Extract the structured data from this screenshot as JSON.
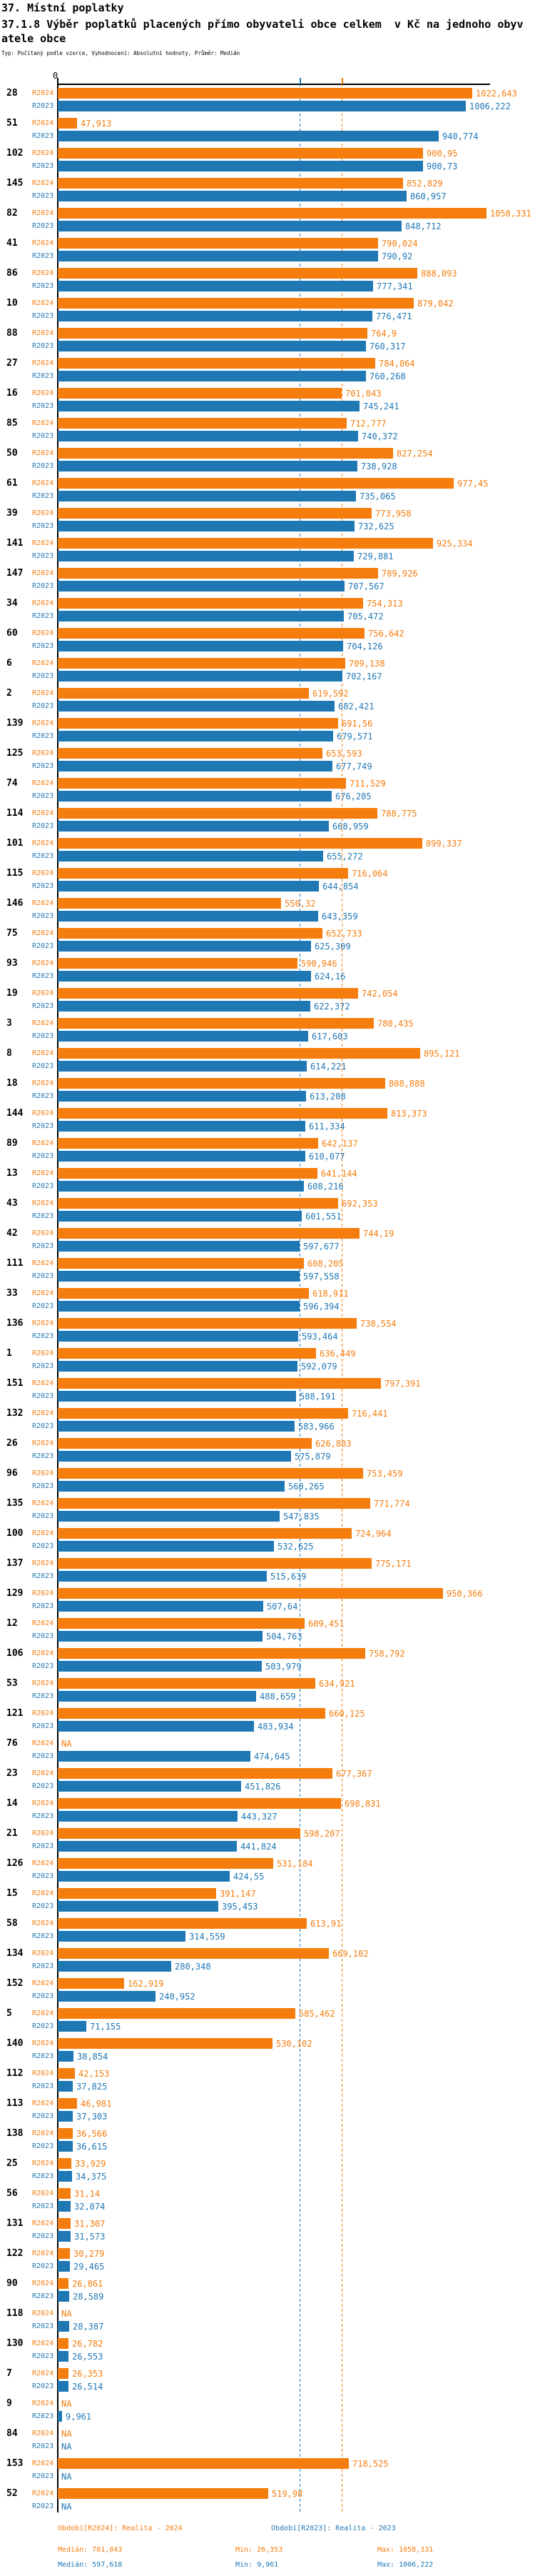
{
  "header": {
    "title": "37. Místní poplatky",
    "subtitle": "37.1.8 Výběr poplatků placených přímo obyvateli obce celkem  v Kč na jednoho obyvatele obce",
    "meta": "Typ: Počítaný podle vzorce, Vyhodnocení: Absolutní hodnoty, Průměr: Medián"
  },
  "chart_data": {
    "type": "bar",
    "orientation": "horizontal",
    "title": "37.1.8 Výběr poplatků placených přímo obyvateli obce celkem v Kč na jednoho obyvatele obce",
    "value_format": "decimal-comma",
    "na_label": "NA",
    "axis": {
      "x_min": 0,
      "x_origin_label": "0",
      "grid": false
    },
    "series_meta": [
      {
        "key": "r2024",
        "label": "R2024",
        "color": "#f57d0d",
        "median": 701.043,
        "min": 26.353,
        "max": 1058.331
      },
      {
        "key": "r2023",
        "label": "R2023",
        "color": "#1f77b4",
        "median": 597.618,
        "min": 9.961,
        "max": 1006.222
      }
    ],
    "reference_lines": [
      {
        "series": "r2024",
        "type": "median",
        "value": 701.043,
        "color": "#f57d0d"
      },
      {
        "series": "r2023",
        "type": "median",
        "value": 597.618,
        "color": "#1f77b4"
      }
    ],
    "groups": [
      {
        "id": "28",
        "r2024": 1022.643,
        "r2023": 1006.222
      },
      {
        "id": "51",
        "r2024": 47.913,
        "r2023": 940.774
      },
      {
        "id": "102",
        "r2024": 900.95,
        "r2023": 900.73
      },
      {
        "id": "145",
        "r2024": 852.829,
        "r2023": 860.957
      },
      {
        "id": "82",
        "r2024": 1058.331,
        "r2023": 848.712
      },
      {
        "id": "41",
        "r2024": 790.024,
        "r2023": 790.92
      },
      {
        "id": "86",
        "r2024": 888.093,
        "r2023": 777.341
      },
      {
        "id": "10",
        "r2024": 879.042,
        "r2023": 776.471
      },
      {
        "id": "88",
        "r2024": 764.9,
        "r2023": 760.317
      },
      {
        "id": "27",
        "r2024": 784.064,
        "r2023": 760.268
      },
      {
        "id": "16",
        "r2024": 701.043,
        "r2023": 745.241
      },
      {
        "id": "85",
        "r2024": 712.777,
        "r2023": 740.372
      },
      {
        "id": "50",
        "r2024": 827.254,
        "r2023": 738.928
      },
      {
        "id": "61",
        "r2024": 977.45,
        "r2023": 735.065
      },
      {
        "id": "39",
        "r2024": 773.958,
        "r2023": 732.625
      },
      {
        "id": "141",
        "r2024": 925.334,
        "r2023": 729.881
      },
      {
        "id": "147",
        "r2024": 789.926,
        "r2023": 707.567
      },
      {
        "id": "34",
        "r2024": 754.313,
        "r2023": 705.472
      },
      {
        "id": "60",
        "r2024": 756.642,
        "r2023": 704.126
      },
      {
        "id": "6",
        "r2024": 709.138,
        "r2023": 702.167
      },
      {
        "id": "2",
        "r2024": 619.592,
        "r2023": 682.421
      },
      {
        "id": "139",
        "r2024": 691.56,
        "r2023": 679.571
      },
      {
        "id": "125",
        "r2024": 653.593,
        "r2023": 677.749
      },
      {
        "id": "74",
        "r2024": 711.529,
        "r2023": 676.205
      },
      {
        "id": "114",
        "r2024": 788.775,
        "r2023": 668.959
      },
      {
        "id": "101",
        "r2024": 899.337,
        "r2023": 655.272
      },
      {
        "id": "115",
        "r2024": 716.064,
        "r2023": 644.854
      },
      {
        "id": "146",
        "r2024": 550.32,
        "r2023": 643.359
      },
      {
        "id": "75",
        "r2024": 652.733,
        "r2023": 625.309
      },
      {
        "id": "93",
        "r2024": 590.946,
        "r2023": 624.16
      },
      {
        "id": "19",
        "r2024": 742.054,
        "r2023": 622.372
      },
      {
        "id": "3",
        "r2024": 780.435,
        "r2023": 617.603
      },
      {
        "id": "8",
        "r2024": 895.121,
        "r2023": 614.221
      },
      {
        "id": "18",
        "r2024": 808.888,
        "r2023": 613.208
      },
      {
        "id": "144",
        "r2024": 813.373,
        "r2023": 611.334
      },
      {
        "id": "89",
        "r2024": 642.137,
        "r2023": 610.077
      },
      {
        "id": "13",
        "r2024": 641.144,
        "r2023": 608.216
      },
      {
        "id": "43",
        "r2024": 692.353,
        "r2023": 601.551
      },
      {
        "id": "42",
        "r2024": 744.19,
        "r2023": 597.677
      },
      {
        "id": "111",
        "r2024": 608.205,
        "r2023": 597.558
      },
      {
        "id": "33",
        "r2024": 618.911,
        "r2023": 596.394
      },
      {
        "id": "136",
        "r2024": 738.554,
        "r2023": 593.464
      },
      {
        "id": "1",
        "r2024": 636.449,
        "r2023": 592.079
      },
      {
        "id": "151",
        "r2024": 797.391,
        "r2023": 588.191
      },
      {
        "id": "132",
        "r2024": 716.441,
        "r2023": 583.966
      },
      {
        "id": "26",
        "r2024": 626.883,
        "r2023": 575.879
      },
      {
        "id": "96",
        "r2024": 753.459,
        "r2023": 560.265
      },
      {
        "id": "135",
        "r2024": 771.774,
        "r2023": 547.835
      },
      {
        "id": "100",
        "r2024": 724.964,
        "r2023": 532.625
      },
      {
        "id": "137",
        "r2024": 775.171,
        "r2023": 515.639
      },
      {
        "id": "129",
        "r2024": 950.366,
        "r2023": 507.64
      },
      {
        "id": "12",
        "r2024": 609.451,
        "r2023": 504.763
      },
      {
        "id": "106",
        "r2024": 758.792,
        "r2023": 503.979
      },
      {
        "id": "53",
        "r2024": 634.921,
        "r2023": 488.659
      },
      {
        "id": "121",
        "r2024": 660.125,
        "r2023": 483.934
      },
      {
        "id": "76",
        "r2024": null,
        "r2023": 474.645
      },
      {
        "id": "23",
        "r2024": 677.367,
        "r2023": 451.826
      },
      {
        "id": "14",
        "r2024": 698.831,
        "r2023": 443.327
      },
      {
        "id": "21",
        "r2024": 598.207,
        "r2023": 441.824
      },
      {
        "id": "126",
        "r2024": 531.184,
        "r2023": 424.55
      },
      {
        "id": "15",
        "r2024": 391.147,
        "r2023": 395.453
      },
      {
        "id": "58",
        "r2024": 613.91,
        "r2023": 314.559
      },
      {
        "id": "134",
        "r2024": 669.102,
        "r2023": 280.348
      },
      {
        "id": "152",
        "r2024": 162.919,
        "r2023": 240.952
      },
      {
        "id": "5",
        "r2024": 585.462,
        "r2023": 71.155
      },
      {
        "id": "140",
        "r2024": 530.102,
        "r2023": 38.854
      },
      {
        "id": "112",
        "r2024": 42.153,
        "r2023": 37.825
      },
      {
        "id": "113",
        "r2024": 46.981,
        "r2023": 37.303
      },
      {
        "id": "138",
        "r2024": 36.566,
        "r2023": 36.615
      },
      {
        "id": "25",
        "r2024": 33.929,
        "r2023": 34.375
      },
      {
        "id": "56",
        "r2024": 31.14,
        "r2023": 32.074
      },
      {
        "id": "131",
        "r2024": 31.307,
        "r2023": 31.573
      },
      {
        "id": "122",
        "r2024": 30.279,
        "r2023": 29.465
      },
      {
        "id": "90",
        "r2024": 26.861,
        "r2023": 28.589
      },
      {
        "id": "118",
        "r2024": null,
        "r2023": 28.387
      },
      {
        "id": "130",
        "r2024": 26.782,
        "r2023": 26.553
      },
      {
        "id": "7",
        "r2024": 26.353,
        "r2023": 26.514
      },
      {
        "id": "9",
        "r2024": null,
        "r2023": 9.961
      },
      {
        "id": "84",
        "r2024": null,
        "r2023": null
      },
      {
        "id": "153",
        "r2024": 718.525,
        "r2023": null
      },
      {
        "id": "52",
        "r2024": 519.98,
        "r2023": null
      }
    ]
  },
  "legend": {
    "r2024": {
      "period": "Období[R2024]: Realita - 2024",
      "median": "Medián: 701,043",
      "min": "Min: 26,353",
      "max": "Max: 1058,331"
    },
    "r2023": {
      "period": "Období[R2023]: Realita - 2023",
      "median": "Medián: 597,618",
      "min": "Min: 9,961",
      "max": "Max: 1006,222"
    }
  },
  "colors": {
    "accent_2024": "#f57d0d",
    "accent_2023": "#1f77b4"
  }
}
